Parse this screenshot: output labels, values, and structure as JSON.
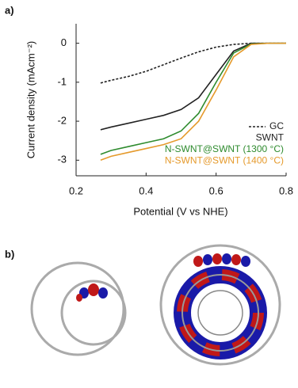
{
  "panel_labels": [
    "a)",
    "b)"
  ],
  "chart_data": {
    "type": "line",
    "xlabel": "Potential (V vs NHE)",
    "ylabel": "Current density (mAcm⁻²)",
    "x": [
      0.27,
      0.3,
      0.35,
      0.4,
      0.45,
      0.5,
      0.55,
      0.6,
      0.65,
      0.7,
      0.75,
      0.8
    ],
    "series": [
      {
        "name": "GC",
        "color": "#222222",
        "dash": true,
        "values": [
          -1.02,
          -0.95,
          -0.85,
          -0.72,
          -0.55,
          -0.38,
          -0.22,
          -0.1,
          -0.03,
          0,
          0,
          0
        ]
      },
      {
        "name": "SWNT",
        "color": "#222222",
        "dash": false,
        "values": [
          -2.22,
          -2.15,
          -2.05,
          -1.95,
          -1.85,
          -1.7,
          -1.4,
          -0.8,
          -0.2,
          0,
          0,
          0
        ]
      },
      {
        "name": "N-SWNT@SWNT (1300 °C)",
        "color": "#2e8b2e",
        "dash": false,
        "values": [
          -2.85,
          -2.75,
          -2.65,
          -2.55,
          -2.45,
          -2.25,
          -1.8,
          -1.0,
          -0.25,
          -0.02,
          0,
          0
        ]
      },
      {
        "name": "N-SWNT@SWNT (1400 °C)",
        "color": "#e59a2c",
        "dash": false,
        "values": [
          -3.0,
          -2.9,
          -2.8,
          -2.7,
          -2.6,
          -2.45,
          -2.0,
          -1.2,
          -0.35,
          -0.03,
          0,
          0
        ]
      }
    ],
    "xlim": [
      0.2,
      0.8
    ],
    "xticks": [
      0.2,
      0.4,
      0.6,
      0.8
    ],
    "ylim": [
      -3.4,
      0.5
    ],
    "yticks": [
      0,
      -1,
      -2,
      -3
    ],
    "legend": "lower right"
  }
}
